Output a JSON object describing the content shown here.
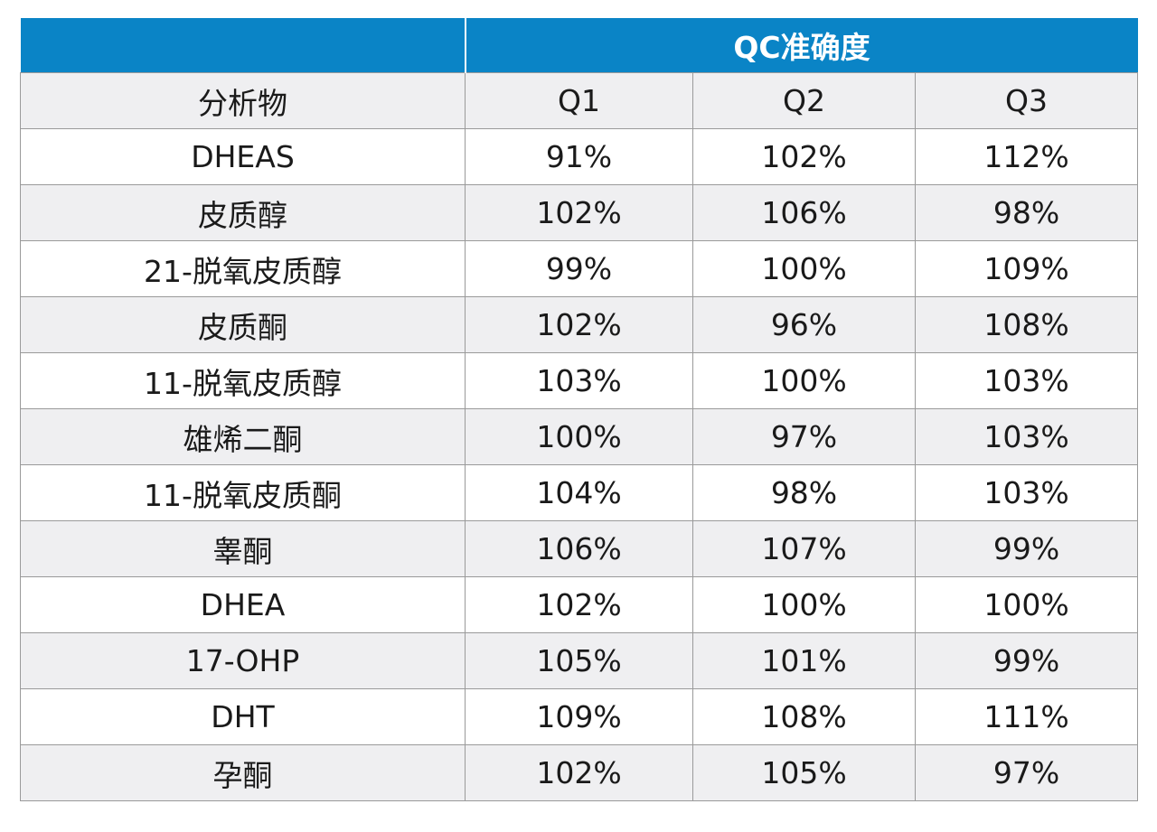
{
  "table": {
    "group_header": "QC准确度",
    "columns": [
      "分析物",
      "Q1",
      "Q2",
      "Q3"
    ],
    "rows": [
      {
        "analyte": "DHEAS",
        "q1": "91%",
        "q2": "102%",
        "q3": "112%"
      },
      {
        "analyte": "皮质醇",
        "q1": "102%",
        "q2": "106%",
        "q3": "98%"
      },
      {
        "analyte": "21-脱氧皮质醇",
        "q1": "99%",
        "q2": "100%",
        "q3": "109%"
      },
      {
        "analyte": "皮质酮",
        "q1": "102%",
        "q2": "96%",
        "q3": "108%"
      },
      {
        "analyte": "11-脱氧皮质醇",
        "q1": "103%",
        "q2": "100%",
        "q3": "103%"
      },
      {
        "analyte": "雄烯二酮",
        "q1": "100%",
        "q2": "97%",
        "q3": "103%"
      },
      {
        "analyte": "11-脱氧皮质酮",
        "q1": "104%",
        "q2": "98%",
        "q3": "103%"
      },
      {
        "analyte": "睾酮",
        "q1": "106%",
        "q2": "107%",
        "q3": "99%"
      },
      {
        "analyte": "DHEA",
        "q1": "102%",
        "q2": "100%",
        "q3": "100%"
      },
      {
        "analyte": "17-OHP",
        "q1": "105%",
        "q2": "101%",
        "q3": "99%"
      },
      {
        "analyte": "DHT",
        "q1": "109%",
        "q2": "108%",
        "q3": "111%"
      },
      {
        "analyte": "孕酮",
        "q1": "102%",
        "q2": "105%",
        "q3": "97%"
      }
    ]
  },
  "colors": {
    "header_blue": "#0a84c6",
    "stripe_gray": "#efeff1",
    "border_gray": "#9a9a9a"
  }
}
